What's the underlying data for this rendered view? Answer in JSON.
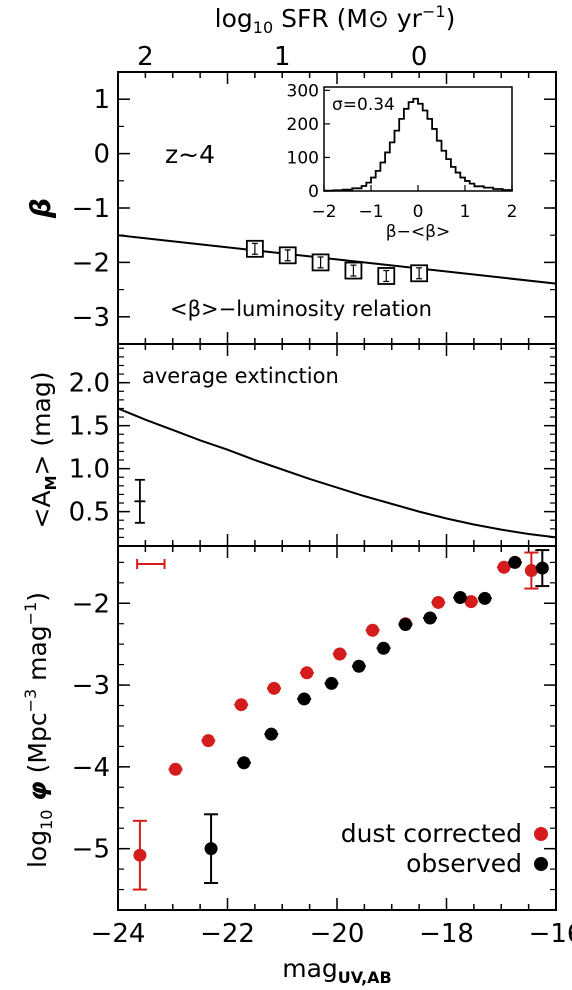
{
  "chart_data": [
    {
      "type": "scatter",
      "panel": "beta",
      "ylabel": "β",
      "annotation": "z~4",
      "relation_label": "<β>−luminosity relation",
      "xlim": [
        -24,
        -16
      ],
      "ylim": [
        -3.5,
        1.5
      ],
      "yticks": [
        -3,
        -2,
        -1,
        0,
        1
      ],
      "ytick_labels": [
        "−3",
        "−2",
        "−1",
        "0",
        "1"
      ],
      "points": {
        "x": [
          -21.5,
          -20.9,
          -20.3,
          -19.7,
          -19.1,
          -18.5
        ],
        "y": [
          -1.75,
          -1.87,
          -2.0,
          -2.15,
          -2.25,
          -2.2
        ],
        "yerr": [
          0.1,
          0.1,
          0.1,
          0.1,
          0.1,
          0.1
        ]
      },
      "fit_line": {
        "x": [
          -24,
          -16
        ],
        "y": [
          -1.5,
          -2.39
        ]
      },
      "top_axis": {
        "label_main": "log",
        "label_sub": "10",
        "label_rest": " SFR (M",
        "label_sun": "⊙",
        "label_unit": " yr",
        "label_sup": "−1",
        "label_close": ")",
        "ticks": [
          {
            "sfr": 2,
            "label": "2",
            "mag": -23.5
          },
          {
            "sfr": 1,
            "label": "1",
            "mag": -21.0
          },
          {
            "sfr": 0,
            "label": "0",
            "mag": -18.5
          }
        ]
      },
      "inset": {
        "type": "histogram",
        "sigma_label": "σ=0.34",
        "xlabel": "β−<β>",
        "xlim": [
          -2,
          2
        ],
        "ylim": [
          0,
          310
        ],
        "xticks": [
          -2,
          -1,
          0,
          1,
          2
        ],
        "xtick_labels": [
          "−2",
          "−1",
          "0",
          "1",
          "2"
        ],
        "yticks": [
          0,
          100,
          200,
          300
        ],
        "ytick_labels": [
          "0",
          "100",
          "200",
          "300"
        ],
        "bin_edges": [
          -2.0,
          -1.8,
          -1.6,
          -1.4,
          -1.2,
          -1.1,
          -1.0,
          -0.9,
          -0.8,
          -0.7,
          -0.6,
          -0.5,
          -0.4,
          -0.3,
          -0.2,
          -0.1,
          0.0,
          0.1,
          0.2,
          0.3,
          0.4,
          0.5,
          0.6,
          0.7,
          0.8,
          0.9,
          1.0,
          1.1,
          1.2,
          1.4,
          1.6,
          1.8,
          2.0
        ],
        "counts": [
          1,
          2,
          4,
          8,
          15,
          25,
          40,
          60,
          85,
          115,
          145,
          180,
          215,
          245,
          265,
          275,
          260,
          240,
          215,
          185,
          150,
          120,
          95,
          72,
          55,
          40,
          30,
          22,
          14,
          10,
          6,
          3
        ]
      }
    },
    {
      "type": "line",
      "panel": "extinction",
      "ylabel": "<A",
      "ylabel_sub": "M",
      "ylabel_rest": "> (mag)",
      "annotation": "average extinction",
      "xlim": [
        -24,
        -16
      ],
      "ylim": [
        0.1,
        2.45
      ],
      "yticks": [
        0.5,
        1.0,
        1.5,
        2.0
      ],
      "ytick_labels": [
        "0.5",
        "1.0",
        "1.5",
        "2.0"
      ],
      "x": [
        -24.0,
        -23.5,
        -23.0,
        -22.5,
        -22.0,
        -21.5,
        -21.0,
        -20.5,
        -20.0,
        -19.5,
        -19.0,
        -18.5,
        -18.0,
        -17.5,
        -17.0,
        -16.5,
        -16.0
      ],
      "y": [
        1.7,
        1.57,
        1.45,
        1.33,
        1.22,
        1.1,
        0.99,
        0.88,
        0.78,
        0.68,
        0.59,
        0.5,
        0.42,
        0.35,
        0.29,
        0.24,
        0.2
      ],
      "error_cross": {
        "x": -23.6,
        "y": 0.62,
        "xerr": 0.1,
        "yerr": 0.25
      }
    },
    {
      "type": "scatter",
      "panel": "luminosity-function",
      "xlabel": "mag",
      "xlabel_sub": "UV,AB",
      "ylabel_pre": "log",
      "ylabel_sub": "10",
      "ylabel_phi": " φ",
      "ylabel_rest": " (Mpc",
      "ylabel_sup1": "−3",
      "ylabel_mid": " mag",
      "ylabel_sup2": "−1",
      "ylabel_close": ")",
      "xlim": [
        -24,
        -16
      ],
      "ylim": [
        -5.75,
        -1.3
      ],
      "xticks": [
        -24,
        -22,
        -20,
        -18,
        -16
      ],
      "xtick_labels": [
        "−24",
        "−22",
        "−20",
        "−18",
        "−16"
      ],
      "yticks": [
        -5,
        -4,
        -3,
        -2
      ],
      "ytick_labels": [
        "−5",
        "−4",
        "−3",
        "−2"
      ],
      "legend_position": "bottom-right",
      "series": [
        {
          "name": "dust corrected",
          "color": "#d41c1c",
          "x": [
            -23.6,
            -22.95,
            -22.35,
            -21.75,
            -21.15,
            -20.55,
            -19.95,
            -19.35,
            -18.75,
            -18.15,
            -17.55,
            -16.95,
            -16.45
          ],
          "y": [
            -5.08,
            -4.03,
            -3.68,
            -3.24,
            -3.04,
            -2.85,
            -2.62,
            -2.33,
            -2.25,
            -1.99,
            -1.98,
            -1.56,
            -1.6
          ],
          "yerr": [
            0.42,
            0.05,
            0.05,
            0.05,
            0.05,
            0.05,
            0.05,
            0.05,
            0.05,
            0.05,
            0.05,
            0.05,
            0.22
          ]
        },
        {
          "name": "observed",
          "color": "#000000",
          "x": [
            -22.3,
            -21.7,
            -21.2,
            -20.6,
            -20.1,
            -19.6,
            -19.15,
            -18.75,
            -18.3,
            -17.75,
            -17.3,
            -16.75,
            -16.25
          ],
          "y": [
            -5.0,
            -3.95,
            -3.6,
            -3.17,
            -2.98,
            -2.77,
            -2.55,
            -2.26,
            -2.18,
            -1.93,
            -1.94,
            -1.5,
            -1.57
          ],
          "yerr": [
            0.42,
            0.06,
            0.05,
            0.05,
            0.05,
            0.05,
            0.05,
            0.05,
            0.05,
            0.05,
            0.05,
            0.05,
            0.22
          ]
        }
      ],
      "mag_error_bar": {
        "x": -23.4,
        "y": -1.52,
        "xerr": 0.25,
        "color": "#d41c1c"
      }
    }
  ]
}
